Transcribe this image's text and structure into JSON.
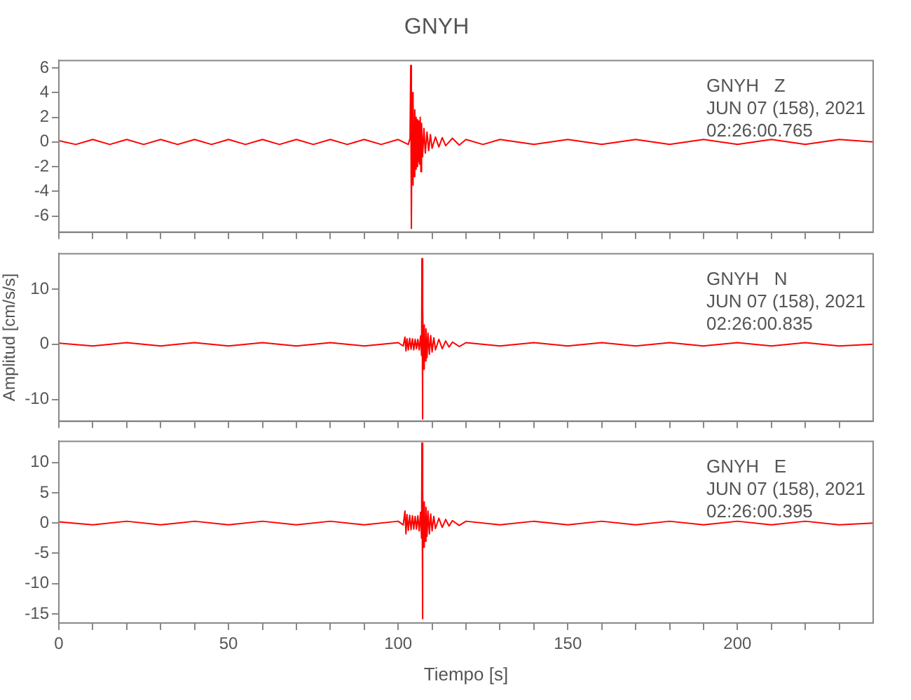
{
  "chart_data": [
    {
      "type": "line",
      "title": "GNYH",
      "annotations": [
        "GNYH   Z",
        "JUN 07 (158), 2021",
        "02:26:00.765"
      ],
      "xlim": [
        0,
        240
      ],
      "xticks": [
        {
          "value": 0,
          "label": null
        },
        {
          "value": 10,
          "label": null
        },
        {
          "value": 20,
          "label": null
        },
        {
          "value": 30,
          "label": null
        },
        {
          "value": 40,
          "label": null
        },
        {
          "value": 50,
          "label": null
        },
        {
          "value": 60,
          "label": null
        },
        {
          "value": 70,
          "label": null
        },
        {
          "value": 80,
          "label": null
        },
        {
          "value": 90,
          "label": null
        },
        {
          "value": 100,
          "label": null
        },
        {
          "value": 110,
          "label": null
        },
        {
          "value": 120,
          "label": null
        },
        {
          "value": 130,
          "label": null
        },
        {
          "value": 140,
          "label": null
        },
        {
          "value": 150,
          "label": null
        },
        {
          "value": 160,
          "label": null
        },
        {
          "value": 170,
          "label": null
        },
        {
          "value": 180,
          "label": null
        },
        {
          "value": 190,
          "label": null
        },
        {
          "value": 200,
          "label": null
        },
        {
          "value": 210,
          "label": null
        },
        {
          "value": 220,
          "label": null
        },
        {
          "value": 230,
          "label": null
        }
      ],
      "ylim": [
        -7.3,
        6.6
      ],
      "yticks": [
        -6,
        -4,
        -2,
        0,
        2,
        4,
        6
      ],
      "tick_labels": "y",
      "grid": false,
      "legend": false,
      "x": [
        0,
        5,
        10,
        15,
        20,
        25,
        30,
        35,
        40,
        45,
        50,
        55,
        60,
        65,
        70,
        75,
        80,
        85,
        90,
        95,
        100,
        103,
        103.5,
        103.7,
        103.9,
        104.1,
        104.3,
        104.5,
        104.7,
        104.9,
        105.1,
        105.3,
        105.5,
        105.7,
        105.9,
        106.1,
        106.3,
        106.5,
        106.7,
        106.9,
        107.2,
        107.6,
        108,
        108.5,
        109,
        109.5,
        110,
        111,
        112,
        113,
        114,
        116,
        118,
        120,
        125,
        130,
        140,
        150,
        160,
        170,
        180,
        190,
        200,
        210,
        220,
        230,
        240
      ],
      "series": [
        {
          "color": "#ff0000",
          "values": [
            0.1,
            -0.2,
            0.2,
            -0.2,
            0.2,
            -0.2,
            0.2,
            -0.2,
            0.2,
            -0.2,
            0.2,
            -0.2,
            0.2,
            -0.2,
            0.2,
            -0.2,
            0.2,
            -0.2,
            0.2,
            -0.2,
            0.2,
            -0.2,
            0.3,
            6.2,
            -7.0,
            4.0,
            -3.5,
            3.2,
            -2.8,
            2.6,
            -2.2,
            2.0,
            -2.0,
            1.8,
            -1.6,
            1.7,
            -1.8,
            2.0,
            -2.4,
            1.5,
            -1.2,
            1.1,
            -0.9,
            0.8,
            -0.7,
            0.6,
            -0.5,
            0.4,
            -0.4,
            0.35,
            -0.3,
            0.3,
            -0.25,
            0.2,
            -0.2,
            0.2,
            -0.2,
            0.2,
            -0.2,
            0.2,
            -0.2,
            0.2,
            -0.2,
            0.2,
            -0.2,
            0.2,
            0
          ]
        }
      ]
    },
    {
      "type": "line",
      "ylabel": "Amplitud [cm/s/s]",
      "annotations": [
        "GNYH   N",
        "JUN 07 (158), 2021",
        "02:26:00.835"
      ],
      "xlim": [
        0,
        240
      ],
      "xticks": [
        {
          "value": 0,
          "label": null
        },
        {
          "value": 10,
          "label": null
        },
        {
          "value": 20,
          "label": null
        },
        {
          "value": 30,
          "label": null
        },
        {
          "value": 40,
          "label": null
        },
        {
          "value": 50,
          "label": null
        },
        {
          "value": 60,
          "label": null
        },
        {
          "value": 70,
          "label": null
        },
        {
          "value": 80,
          "label": null
        },
        {
          "value": 90,
          "label": null
        },
        {
          "value": 100,
          "label": null
        },
        {
          "value": 110,
          "label": null
        },
        {
          "value": 120,
          "label": null
        },
        {
          "value": 130,
          "label": null
        },
        {
          "value": 140,
          "label": null
        },
        {
          "value": 150,
          "label": null
        },
        {
          "value": 160,
          "label": null
        },
        {
          "value": 170,
          "label": null
        },
        {
          "value": 180,
          "label": null
        },
        {
          "value": 190,
          "label": null
        },
        {
          "value": 200,
          "label": null
        },
        {
          "value": 210,
          "label": null
        },
        {
          "value": 220,
          "label": null
        },
        {
          "value": 230,
          "label": null
        }
      ],
      "ylim": [
        -13.9,
        16.4
      ],
      "yticks": [
        -10,
        0,
        10
      ],
      "tick_labels": "y",
      "grid": false,
      "legend": false,
      "x": [
        0,
        10,
        20,
        30,
        40,
        50,
        60,
        70,
        80,
        90,
        100,
        101.5,
        102,
        102.3,
        102.6,
        103,
        103.4,
        103.8,
        104.2,
        104.6,
        105,
        105.4,
        105.8,
        106.2,
        106.6,
        106.9,
        107,
        107.15,
        107.3,
        107.5,
        107.7,
        107.9,
        108.2,
        108.5,
        108.8,
        109.2,
        109.6,
        110,
        110.5,
        111,
        112,
        113,
        114,
        115,
        116,
        118,
        120,
        130,
        140,
        150,
        160,
        170,
        180,
        190,
        200,
        210,
        220,
        230,
        240
      ],
      "series": [
        {
          "color": "#ff0000",
          "values": [
            0.2,
            -0.3,
            0.3,
            -0.3,
            0.3,
            -0.3,
            0.3,
            -0.3,
            0.3,
            -0.3,
            0.3,
            -0.3,
            1.3,
            -1.2,
            1.0,
            -1.0,
            1.1,
            -0.9,
            1.0,
            -1.0,
            0.9,
            -0.8,
            0.9,
            -1.0,
            1.5,
            -2.0,
            15.5,
            -13.5,
            6.5,
            -4.5,
            3.5,
            -3.0,
            2.8,
            -2.4,
            2.0,
            -1.8,
            1.6,
            -1.4,
            1.2,
            -1.0,
            0.9,
            -0.8,
            0.6,
            -0.5,
            0.4,
            -0.4,
            0.3,
            -0.3,
            0.3,
            -0.3,
            0.3,
            -0.3,
            0.3,
            -0.3,
            0.3,
            -0.3,
            0.3,
            -0.3,
            0
          ]
        }
      ]
    },
    {
      "type": "line",
      "xlabel": "Tiempo [s]",
      "annotations": [
        "GNYH   E",
        "JUN 07 (158), 2021",
        "02:26:00.395"
      ],
      "xlim": [
        0,
        240
      ],
      "xticks": [
        0,
        {
          "value": 10,
          "label": null
        },
        {
          "value": 20,
          "label": null
        },
        {
          "value": 30,
          "label": null
        },
        {
          "value": 40,
          "label": null
        },
        50,
        {
          "value": 60,
          "label": null
        },
        {
          "value": 70,
          "label": null
        },
        {
          "value": 80,
          "label": null
        },
        {
          "value": 90,
          "label": null
        },
        100,
        {
          "value": 110,
          "label": null
        },
        {
          "value": 120,
          "label": null
        },
        {
          "value": 130,
          "label": null
        },
        {
          "value": 140,
          "label": null
        },
        150,
        {
          "value": 160,
          "label": null
        },
        {
          "value": 170,
          "label": null
        },
        {
          "value": 180,
          "label": null
        },
        {
          "value": 190,
          "label": null
        },
        200,
        {
          "value": 210,
          "label": null
        },
        {
          "value": 220,
          "label": null
        },
        {
          "value": 230,
          "label": null
        }
      ],
      "ylim": [
        -16.5,
        13.5
      ],
      "yticks": [
        -15,
        -10,
        -5,
        0,
        5,
        10
      ],
      "grid": false,
      "legend": false,
      "x": [
        0,
        10,
        20,
        30,
        40,
        50,
        60,
        70,
        80,
        90,
        100,
        101.5,
        102,
        102.3,
        102.6,
        103,
        103.4,
        103.8,
        104.2,
        104.6,
        105,
        105.4,
        105.8,
        106.2,
        106.6,
        106.9,
        107,
        107.15,
        107.3,
        107.5,
        107.7,
        107.9,
        108.2,
        108.5,
        108.8,
        109.2,
        109.6,
        110,
        110.5,
        111,
        112,
        113,
        114,
        115,
        116,
        118,
        120,
        130,
        140,
        150,
        160,
        170,
        180,
        190,
        200,
        210,
        220,
        230,
        240
      ],
      "series": [
        {
          "color": "#ff0000",
          "values": [
            0.2,
            -0.3,
            0.3,
            -0.3,
            0.3,
            -0.3,
            0.3,
            -0.3,
            0.3,
            -0.3,
            0.3,
            -0.3,
            2.0,
            -1.8,
            1.4,
            -1.2,
            1.3,
            -1.1,
            1.2,
            -1.0,
            1.1,
            -1.0,
            1.2,
            -1.3,
            1.8,
            -2.5,
            13.2,
            -15.8,
            5.0,
            -4.0,
            3.5,
            -3.0,
            2.6,
            -2.2,
            2.0,
            -1.8,
            1.5,
            -1.3,
            1.1,
            -0.9,
            0.8,
            -0.7,
            0.6,
            -0.5,
            0.4,
            -0.4,
            0.3,
            -0.3,
            0.3,
            -0.3,
            0.3,
            -0.3,
            0.3,
            -0.3,
            0.3,
            -0.3,
            0.3,
            -0.3,
            0
          ]
        }
      ]
    }
  ]
}
